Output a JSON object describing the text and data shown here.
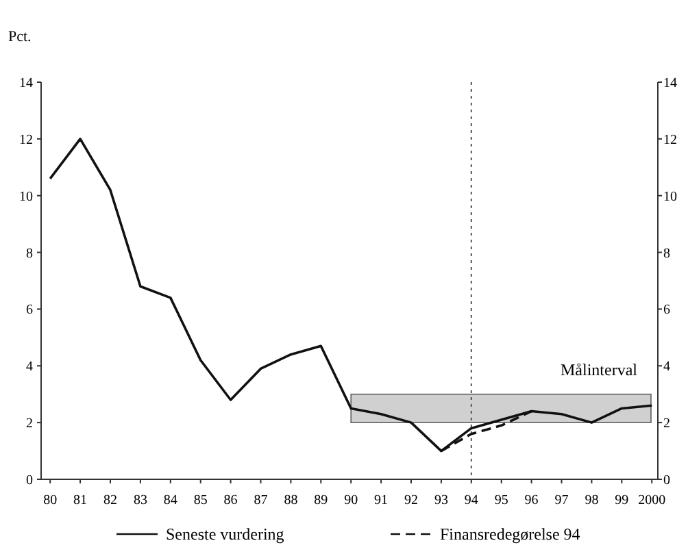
{
  "chart_data": {
    "type": "line",
    "ylabel": "Pct.",
    "categories": [
      "80",
      "81",
      "82",
      "83",
      "84",
      "85",
      "86",
      "87",
      "88",
      "89",
      "90",
      "91",
      "92",
      "93",
      "94",
      "95",
      "96",
      "97",
      "98",
      "99",
      "2000"
    ],
    "series": [
      {
        "name": "Seneste vurdering",
        "color": "#111111",
        "line_style": "solid",
        "values": [
          10.6,
          12,
          10.2,
          6.8,
          6.4,
          4.2,
          2.8,
          3.9,
          4.4,
          4.7,
          2.5,
          2.3,
          2.0,
          1.0,
          1.8,
          2.1,
          2.4,
          2.3,
          2.0,
          2.5,
          2.6
        ]
      },
      {
        "name": "Finansredegørelse 94",
        "color": "#111111",
        "line_style": "dashed",
        "values": [
          null,
          null,
          null,
          null,
          null,
          null,
          null,
          null,
          null,
          null,
          null,
          null,
          null,
          1.0,
          1.6,
          1.9,
          2.4,
          null,
          null,
          null,
          null
        ]
      }
    ],
    "ylim": [
      0,
      14
    ],
    "yticks": [
      0,
      2,
      4,
      6,
      8,
      10,
      12,
      14
    ],
    "y2lim": [
      0,
      14
    ],
    "y2ticks": [
      0,
      2,
      4,
      6,
      8,
      10,
      12,
      14
    ],
    "bands": [
      {
        "axis": "y",
        "from": 2,
        "to": 3,
        "label": "Målinterval",
        "color": "#c8c8c8"
      }
    ],
    "ref_lines": [
      {
        "axis": "x",
        "value": "94",
        "line_style": "dotted",
        "color": "#555555"
      }
    ],
    "grid": false,
    "legend": "bottom",
    "marker": "none"
  }
}
